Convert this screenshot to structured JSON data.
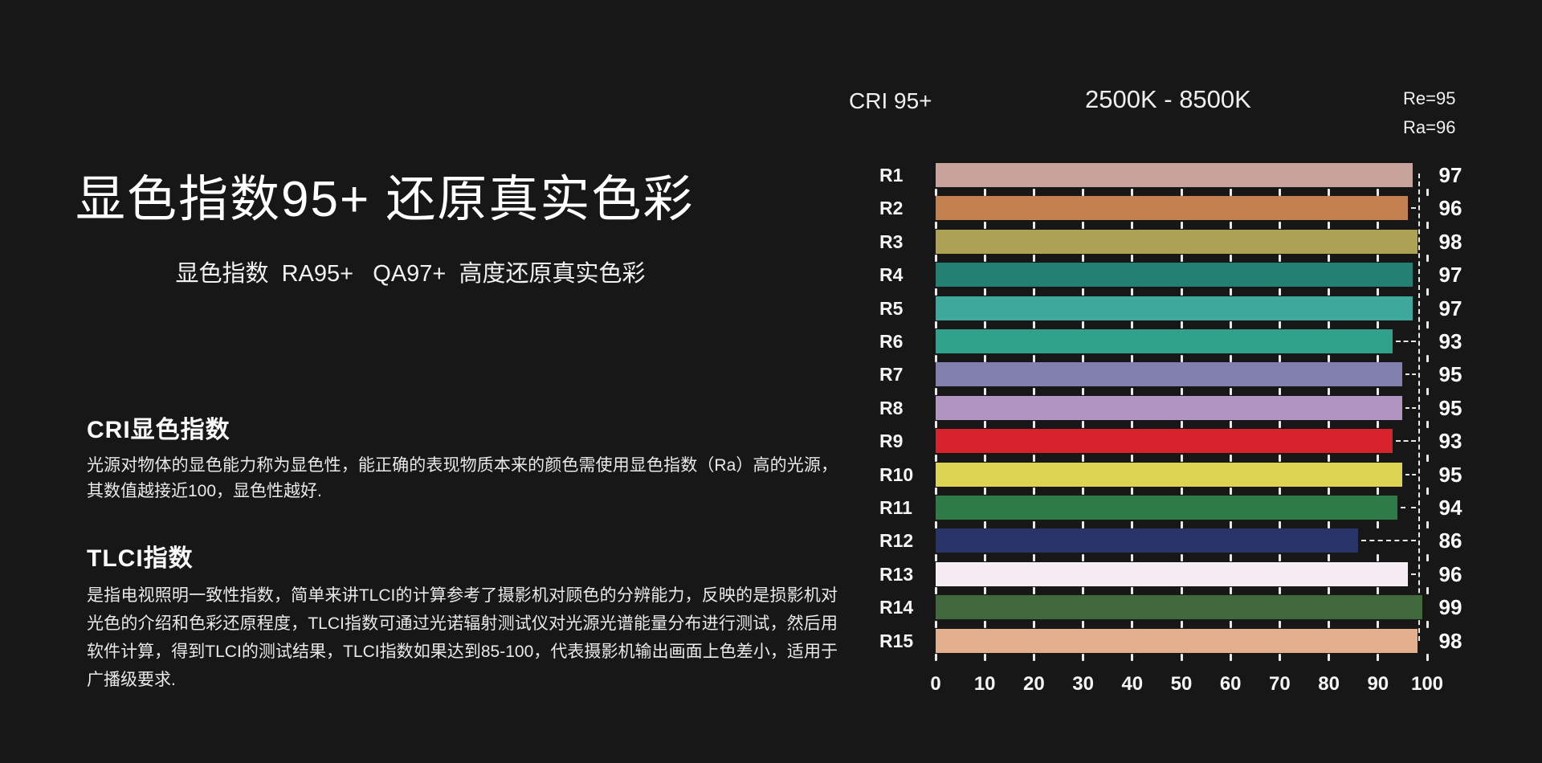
{
  "page": {
    "background": "#171717",
    "text_color": "#f0f0f0",
    "accent_white": "#ffffff"
  },
  "left": {
    "title": "显色指数95+ 还原真实色彩",
    "subtitle": "显色指数  RA95+   QA97+  高度还原真实色彩",
    "sections": [
      {
        "heading": "CRI显色指数",
        "body": "光源对物体的显色能力称为显色性，能正确的表现物质本来的颜色需使用显色指数（Ra）高的光源，其数值越接近100，显色性越好."
      },
      {
        "heading": "TLCI指数",
        "body": "是指电视照明一致性指数，简单来讲TLCI的计算参考了摄影机对顾色的分辨能力，反映的是损影机对光色的介绍和色彩还原程度，TLCI指数可通过光诺辐射测试仪对光源光谱能量分布进行测试，然后用软件计算，得到TLCI的测试结果，TLCI指数如果达到85-100，代表摄影机输出画面上色差小，适用于广播级要求."
      }
    ]
  },
  "chart_header": {
    "cri": "CRI 95+",
    "kelvin_range": "2500K - 8500K",
    "re": "Re=95",
    "ra": "Ra=96"
  },
  "chart_data": {
    "type": "bar",
    "orientation": "horizontal",
    "title": "CRI 95+",
    "subtitle": "2500K - 8500K",
    "annotations": [
      "Re=95",
      "Ra=96"
    ],
    "categories": [
      "R1",
      "R2",
      "R3",
      "R4",
      "R5",
      "R6",
      "R7",
      "R8",
      "R9",
      "R10",
      "R11",
      "R12",
      "R13",
      "R14",
      "R15"
    ],
    "values": [
      97,
      96,
      98,
      97,
      97,
      93,
      95,
      95,
      93,
      95,
      94,
      86,
      96,
      99,
      98
    ],
    "bar_colors": [
      "#c8a39a",
      "#c5804f",
      "#ada254",
      "#238073",
      "#3ea89c",
      "#30a28c",
      "#8280af",
      "#b294c3",
      "#d8232d",
      "#ddd352",
      "#2f7b48",
      "#293468",
      "#f6ecf3",
      "#40693d",
      "#e2b08d"
    ],
    "xlim": [
      0,
      100
    ],
    "x_ticks": [
      "0",
      "10",
      "20",
      "30",
      "40",
      "50",
      "60",
      "70",
      "80",
      "90",
      "100"
    ],
    "value_labels_position": "right",
    "grid": "dashed-ticks",
    "guide_line_color": "#e9e9e9"
  }
}
